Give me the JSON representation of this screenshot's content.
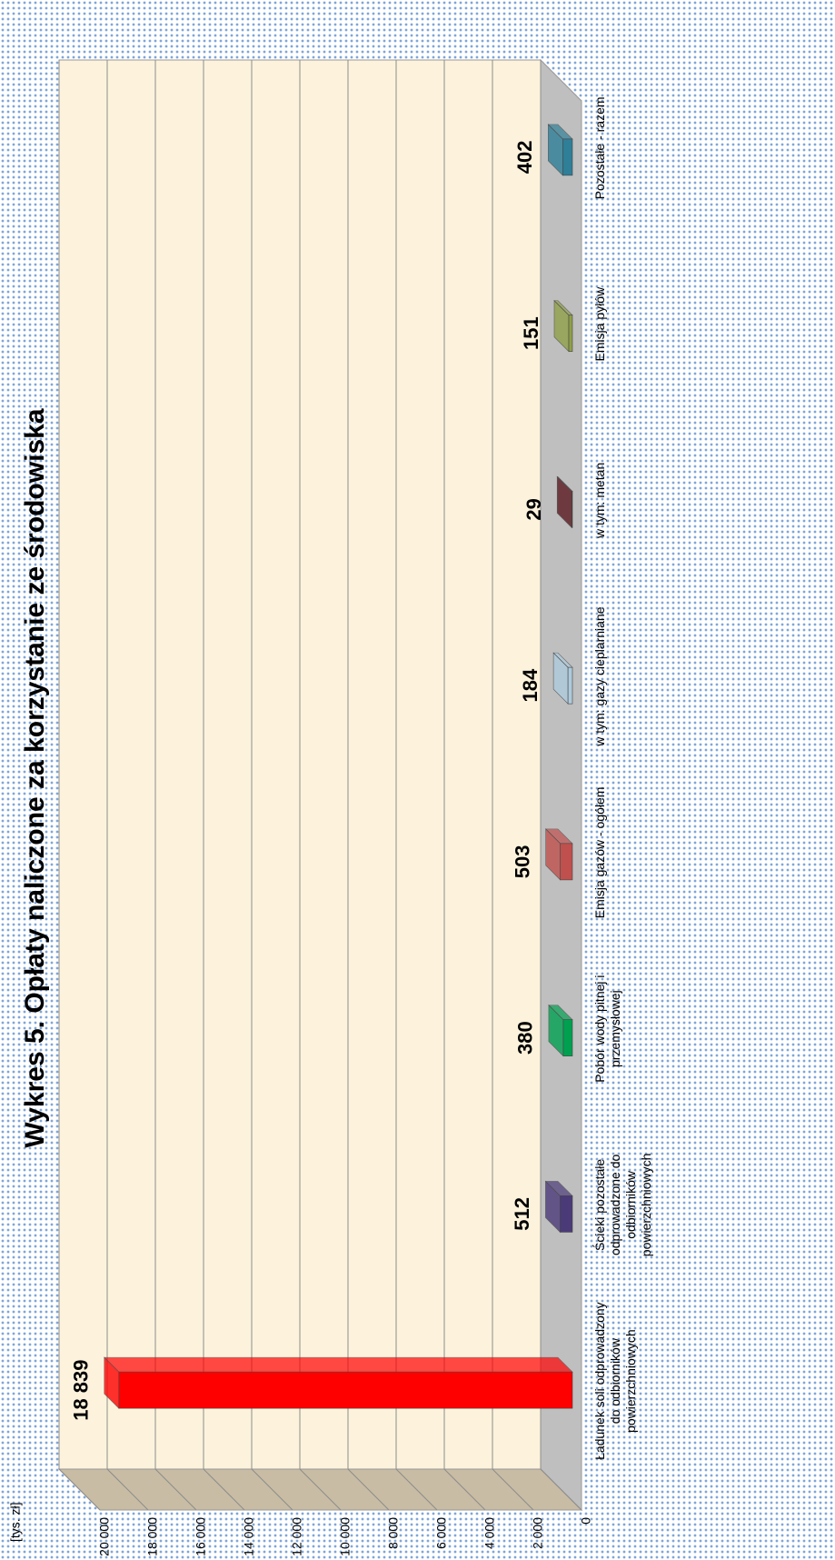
{
  "chart_data": {
    "type": "bar3d",
    "title": "Wykres 5. Opłaty naliczone za korzystanie ze środowiska",
    "y_label": "[tys. zł]",
    "categories": [
      "Ładunek soli odprowadzony do odbiorników powierzchniowych",
      "Ścieki pozostałe odprowadzone do odbiorników powierzchniowych",
      "Pobór wody pitnej i przemysłowej",
      "Emisja gazów - ogółem",
      "w tym: gazy cieplarniane",
      "w tym: metan",
      "Emisja pyłów",
      "Pozostałe - razem"
    ],
    "values": [
      18839,
      512,
      380,
      503,
      184,
      29,
      151,
      402
    ],
    "value_labels": [
      "18 839",
      "512",
      "380",
      "503",
      "184",
      "29",
      "151",
      "402"
    ],
    "colors": [
      "#ff0000",
      "#4b3a78",
      "#00a050",
      "#c0504d",
      "#aecbdd",
      "#5a1a20",
      "#8fa048",
      "#2f7f98"
    ],
    "ylim": [
      0,
      20000
    ],
    "yticks": [
      0,
      {
        "value": 2000,
        "label": "2 000"
      },
      {
        "value": 4000,
        "label": "4 000"
      },
      {
        "value": 6000,
        "label": "6 000"
      },
      {
        "value": 8000,
        "label": "8 000"
      },
      {
        "value": 10000,
        "label": "10 000"
      },
      {
        "value": 12000,
        "label": "12 000"
      },
      {
        "value": 14000,
        "label": "14 000"
      },
      {
        "value": 16000,
        "label": "16 000"
      },
      {
        "value": 18000,
        "label": "18 000"
      },
      {
        "value": 20000,
        "label": "20 000"
      }
    ],
    "grid": true
  }
}
